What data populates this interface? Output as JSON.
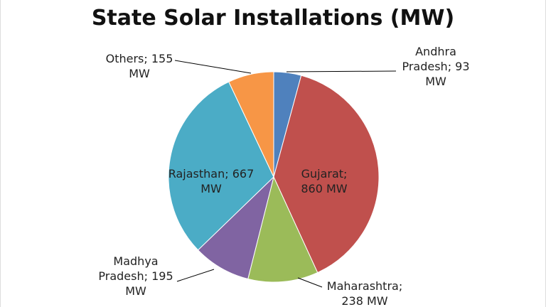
{
  "chart_data": {
    "type": "pie",
    "title": "State Solar Installations (MW)",
    "categories": [
      "Andhra Pradesh",
      "Gujarat",
      "Maharashtra",
      "Madhya Pradesh",
      "Rajasthan",
      "Others"
    ],
    "values": [
      93,
      860,
      238,
      195,
      667,
      155
    ],
    "value_labels": [
      "Andhra Pradesh; 93 MW",
      "Gujarat; 860 MW",
      "Maharashtra; 238 MW",
      "Madhya Pradesh; 195 MW",
      "Rajasthan; 667 MW",
      "Others; 155 MW"
    ],
    "colors": [
      "#4f81bd",
      "#c0504d",
      "#9bbb59",
      "#8064a2",
      "#4bacc6",
      "#f79646"
    ]
  }
}
